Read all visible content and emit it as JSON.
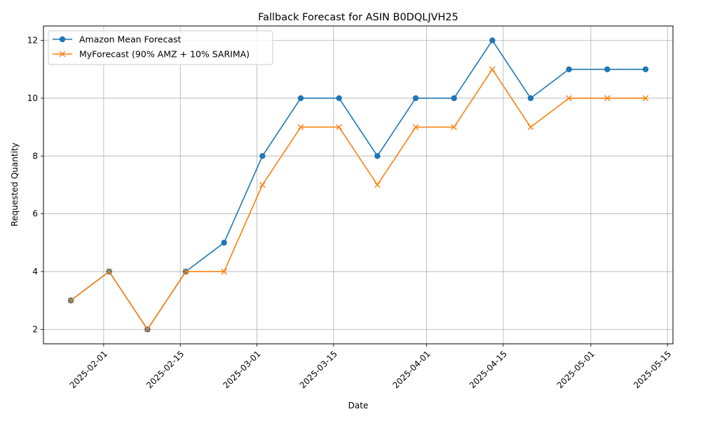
{
  "chart_data": {
    "type": "line",
    "title": "Fallback Forecast for ASIN B0DQLJVH25",
    "xlabel": "Date",
    "ylabel": "Requested Quantity",
    "x": [
      "2025-01-26",
      "2025-02-02",
      "2025-02-09",
      "2025-02-16",
      "2025-02-23",
      "2025-03-02",
      "2025-03-09",
      "2025-03-16",
      "2025-03-23",
      "2025-03-30",
      "2025-04-06",
      "2025-04-13",
      "2025-04-20",
      "2025-04-27",
      "2025-05-04",
      "2025-05-11"
    ],
    "series": [
      {
        "name": "Amazon Mean Forecast",
        "color": "#1f77b4",
        "marker": "circle",
        "values": [
          3,
          4,
          2,
          4,
          5,
          8,
          10,
          10,
          8,
          10,
          10,
          12,
          10,
          11,
          11,
          11
        ]
      },
      {
        "name": "MyForecast (90% AMZ + 10% SARIMA)",
        "color": "#ff7f0e",
        "marker": "x",
        "values": [
          3,
          4,
          2,
          4,
          4,
          7,
          9,
          9,
          7,
          9,
          9,
          11,
          9,
          10,
          10,
          10
        ]
      }
    ],
    "xticks": [
      "2025-02-01",
      "2025-02-15",
      "2025-03-01",
      "2025-03-15",
      "2025-04-01",
      "2025-04-15",
      "2025-05-01",
      "2025-05-15"
    ],
    "yticks": [
      2,
      4,
      6,
      8,
      10,
      12
    ],
    "xlim": [
      "2025-01-21",
      "2025-05-16"
    ],
    "ylim": [
      1.5,
      12.5
    ],
    "grid": true,
    "legend_position": "top-left"
  }
}
